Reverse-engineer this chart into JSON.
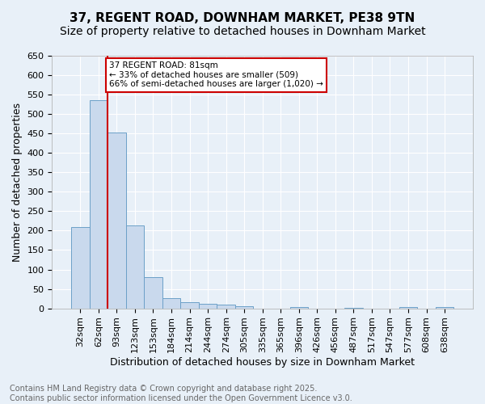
{
  "title": "37, REGENT ROAD, DOWNHAM MARKET, PE38 9TN",
  "subtitle": "Size of property relative to detached houses in Downham Market",
  "xlabel": "Distribution of detached houses by size in Downham Market",
  "ylabel": "Number of detached properties",
  "bar_values": [
    209,
    536,
    453,
    213,
    81,
    26,
    15,
    12,
    10,
    6,
    0,
    0,
    4,
    0,
    0,
    2,
    0,
    0,
    3,
    0,
    3
  ],
  "categories": [
    "32sqm",
    "62sqm",
    "93sqm",
    "123sqm",
    "153sqm",
    "184sqm",
    "214sqm",
    "244sqm",
    "274sqm",
    "305sqm",
    "335sqm",
    "365sqm",
    "396sqm",
    "426sqm",
    "456sqm",
    "487sqm",
    "517sqm",
    "547sqm",
    "577sqm",
    "608sqm",
    "638sqm"
  ],
  "bar_color": "#c9d9ed",
  "bar_edge_color": "#6ca0c8",
  "bar_width": 1.0,
  "vline_color": "#cc0000",
  "annotation_text": "37 REGENT ROAD: 81sqm\n← 33% of detached houses are smaller (509)\n66% of semi-detached houses are larger (1,020) →",
  "annotation_box_color": "#ffffff",
  "annotation_box_edge": "#cc0000",
  "ylim": [
    0,
    650
  ],
  "yticks": [
    0,
    50,
    100,
    150,
    200,
    250,
    300,
    350,
    400,
    450,
    500,
    550,
    600,
    650
  ],
  "background_color": "#e8f0f8",
  "plot_bg_color": "#e8f0f8",
  "footer_text": "Contains HM Land Registry data © Crown copyright and database right 2025.\nContains public sector information licensed under the Open Government Licence v3.0.",
  "title_fontsize": 11,
  "subtitle_fontsize": 10,
  "xlabel_fontsize": 9,
  "ylabel_fontsize": 9,
  "tick_fontsize": 8,
  "footer_fontsize": 7
}
